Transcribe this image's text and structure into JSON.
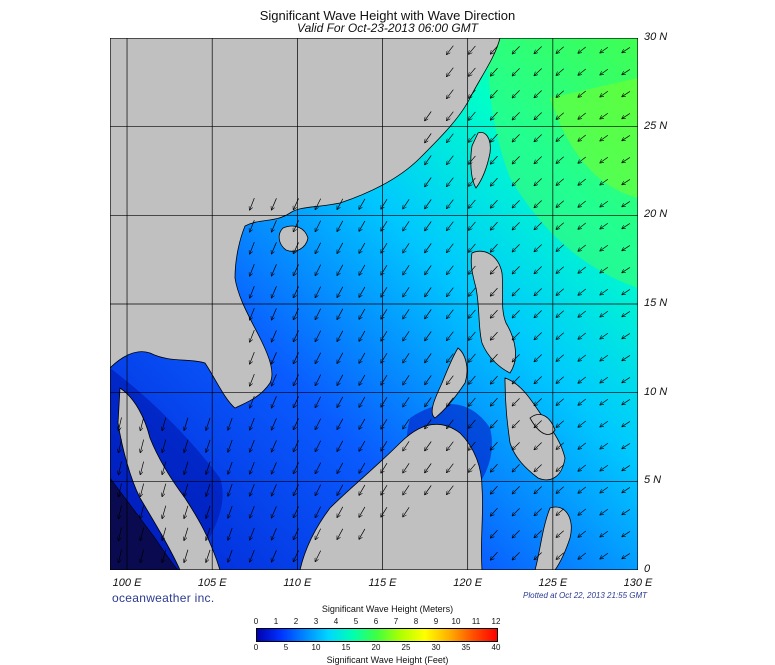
{
  "title": "Significant Wave Height with Wave Direction",
  "subtitle": "Valid For Oct-23-2013 06:00 GMT",
  "brand": "oceanweather inc.",
  "plotted": "Plotted at Oct 22, 2013 21:55 GMT",
  "map": {
    "lon_range": [
      99,
      130
    ],
    "lat_range": [
      0,
      30
    ],
    "lon_labels": [
      "100 E",
      "105 E",
      "110 E",
      "115 E",
      "120 E",
      "125 E",
      "130 E"
    ],
    "lat_labels": [
      "0",
      "5 N",
      "10 N",
      "15 N",
      "20 N",
      "25 N",
      "30 N"
    ],
    "land_color": "#c0c0c0",
    "ocean_base_color": "#2a57ff"
  },
  "legend": {
    "title_meters": "Significant Wave Height (Meters)",
    "title_feet": "Significant Wave Height (Feet)",
    "meter_ticks": [
      "0",
      "1",
      "2",
      "3",
      "4",
      "5",
      "6",
      "7",
      "8",
      "9",
      "10",
      "11",
      "12"
    ],
    "feet_ticks": [
      "0",
      "5",
      "10",
      "15",
      "20",
      "25",
      "30",
      "35",
      "40"
    ],
    "colors": [
      "#0000b0",
      "#0033ff",
      "#0088ff",
      "#00d8ff",
      "#00ffb0",
      "#40ff40",
      "#b0ff00",
      "#ffff00",
      "#ffb000",
      "#ff5000",
      "#ff0000"
    ]
  }
}
